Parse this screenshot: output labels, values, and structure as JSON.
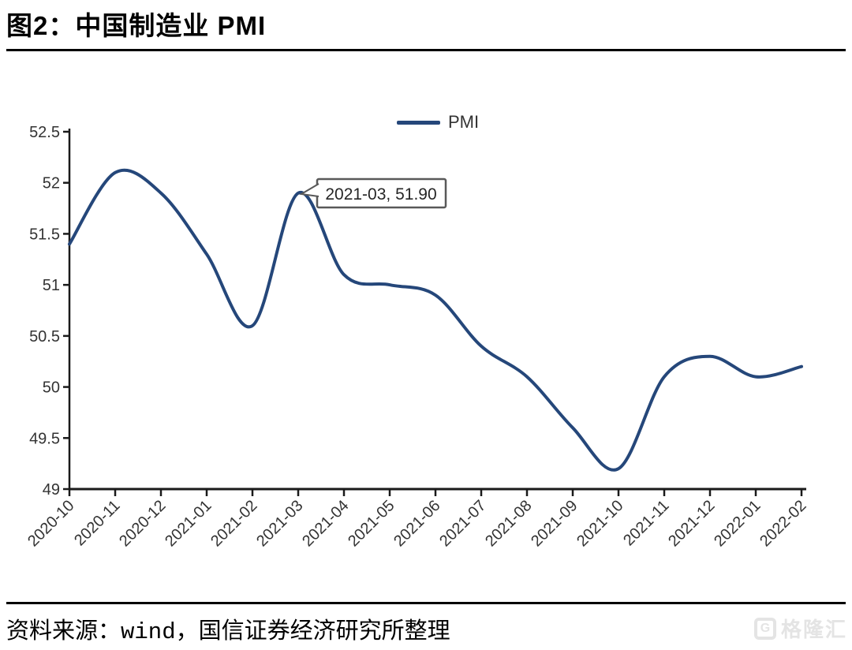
{
  "header": {
    "title": "图2：中国制造业 PMI"
  },
  "chart_data": {
    "type": "line",
    "title": "图2：中国制造业 PMI",
    "legend": [
      "PMI"
    ],
    "legend_position": "top-center",
    "smooth": true,
    "grid": false,
    "x": [
      "2020-10",
      "2020-11",
      "2020-12",
      "2021-01",
      "2021-02",
      "2021-03",
      "2021-04",
      "2021-05",
      "2021-06",
      "2021-07",
      "2021-08",
      "2021-09",
      "2021-10",
      "2021-11",
      "2021-12",
      "2022-01",
      "2022-02"
    ],
    "series": [
      {
        "name": "PMI",
        "values": [
          51.4,
          52.1,
          51.9,
          51.3,
          50.6,
          51.9,
          51.1,
          51.0,
          50.9,
          50.4,
          50.1,
          49.6,
          49.2,
          50.1,
          50.3,
          50.1,
          50.2
        ]
      }
    ],
    "ylim": [
      49,
      52.5
    ],
    "y_ticks": [
      "49",
      "49.5",
      "50",
      "50.5",
      "51",
      "51.5",
      "52",
      "52.5"
    ],
    "xlabel": "",
    "ylabel": "",
    "annotation": {
      "label": "2021-03, 51.90",
      "x": "2021-03",
      "y": 51.9
    },
    "colors": {
      "line": "#25477a",
      "axis": "#1a1a1a",
      "tick_label": "#333333",
      "annotation_border": "#595959",
      "annotation_text": "#262626"
    }
  },
  "footer": {
    "source": "资料来源：wind，国信证券经济研究所整理",
    "watermark": {
      "icon": "gelonghui-g-icon",
      "icon_letter": "G",
      "text": "格隆汇"
    }
  }
}
